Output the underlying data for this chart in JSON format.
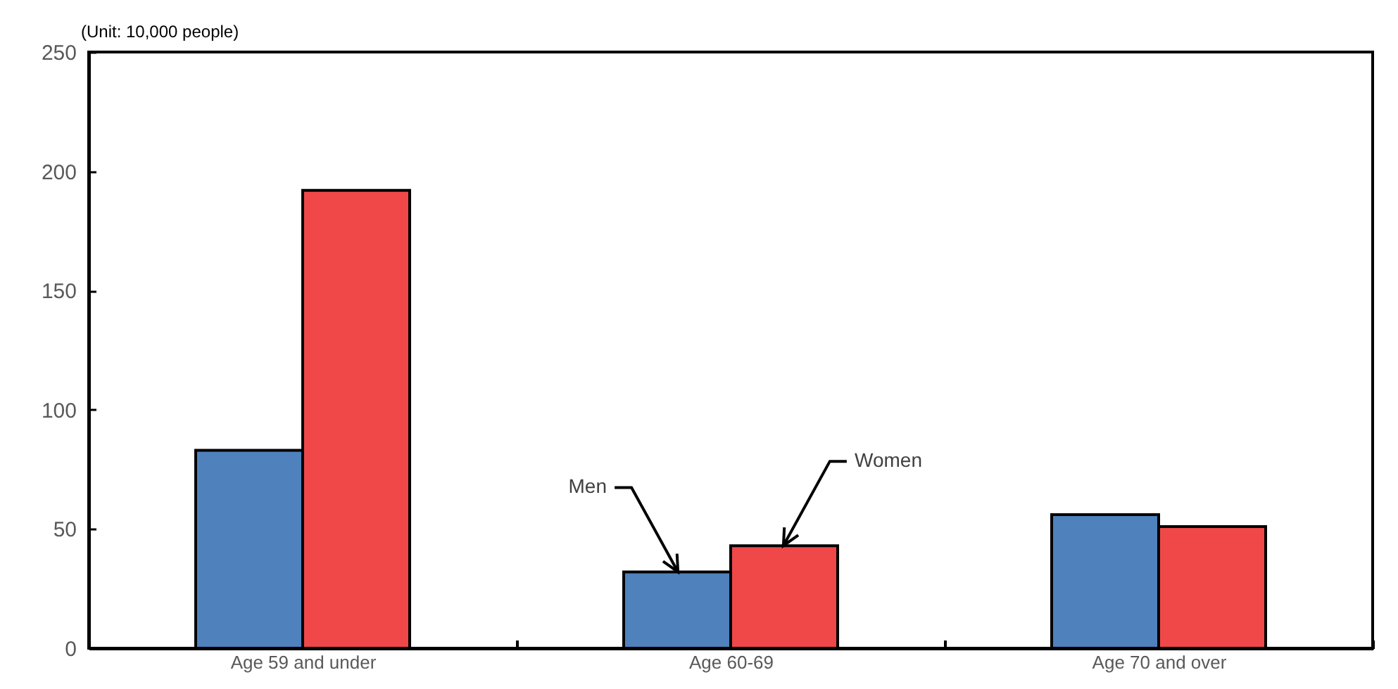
{
  "chart_data": {
    "type": "bar",
    "ylabel": "(Unit: 10,000 people)",
    "categories": [
      "Age 59 and under",
      "Age 60-69",
      "Age 70 and over"
    ],
    "series": [
      {
        "name": "Men",
        "color": "#4f81bd",
        "values": [
          83,
          32,
          56
        ]
      },
      {
        "name": "Women",
        "color": "#f04848",
        "values": [
          192,
          43,
          51
        ]
      }
    ],
    "ylim": [
      0,
      250
    ],
    "yticks": [
      0,
      50,
      100,
      150,
      200,
      250
    ],
    "grid": false
  }
}
